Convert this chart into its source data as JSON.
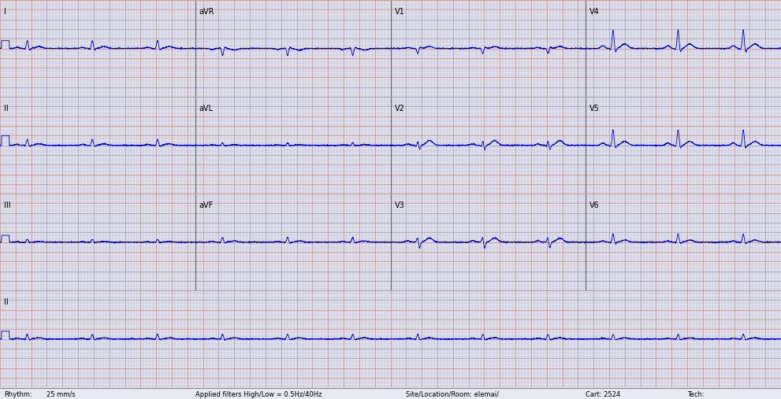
{
  "bg_color": "#e8e8f0",
  "grid_minor_color": "#b0b0cc",
  "grid_major_color": "#c0a0a0",
  "ecg_color": "#0000cc",
  "border_color": "#888888",
  "title_color": "#000033",
  "fig_width": 9.91,
  "fig_height": 5.07,
  "dpi": 100,
  "bottom_bar_text": [
    "Rhythm:",
    "25 mm/s",
    "Applied filters High/Low = 0.5Hz/40Hz",
    "Site/Location/Room: elemai/",
    "Cart: 2524",
    "Tech:"
  ],
  "lead_labels": [
    "I",
    "aVR",
    "V1",
    "V4",
    "II",
    "aVL",
    "V2",
    "V5",
    "III",
    "aVF",
    "V3",
    "V6",
    "II"
  ],
  "row_labels": [
    [
      "I",
      "aVR",
      "V1",
      "V4"
    ],
    [
      "II",
      "aVL",
      "V2",
      "V5"
    ],
    [
      "III",
      "aVF",
      "V3",
      "V6"
    ],
    [
      "II"
    ]
  ],
  "n_rows": 4,
  "n_cols": 4,
  "sample_rate": 500,
  "duration_sec": 10
}
